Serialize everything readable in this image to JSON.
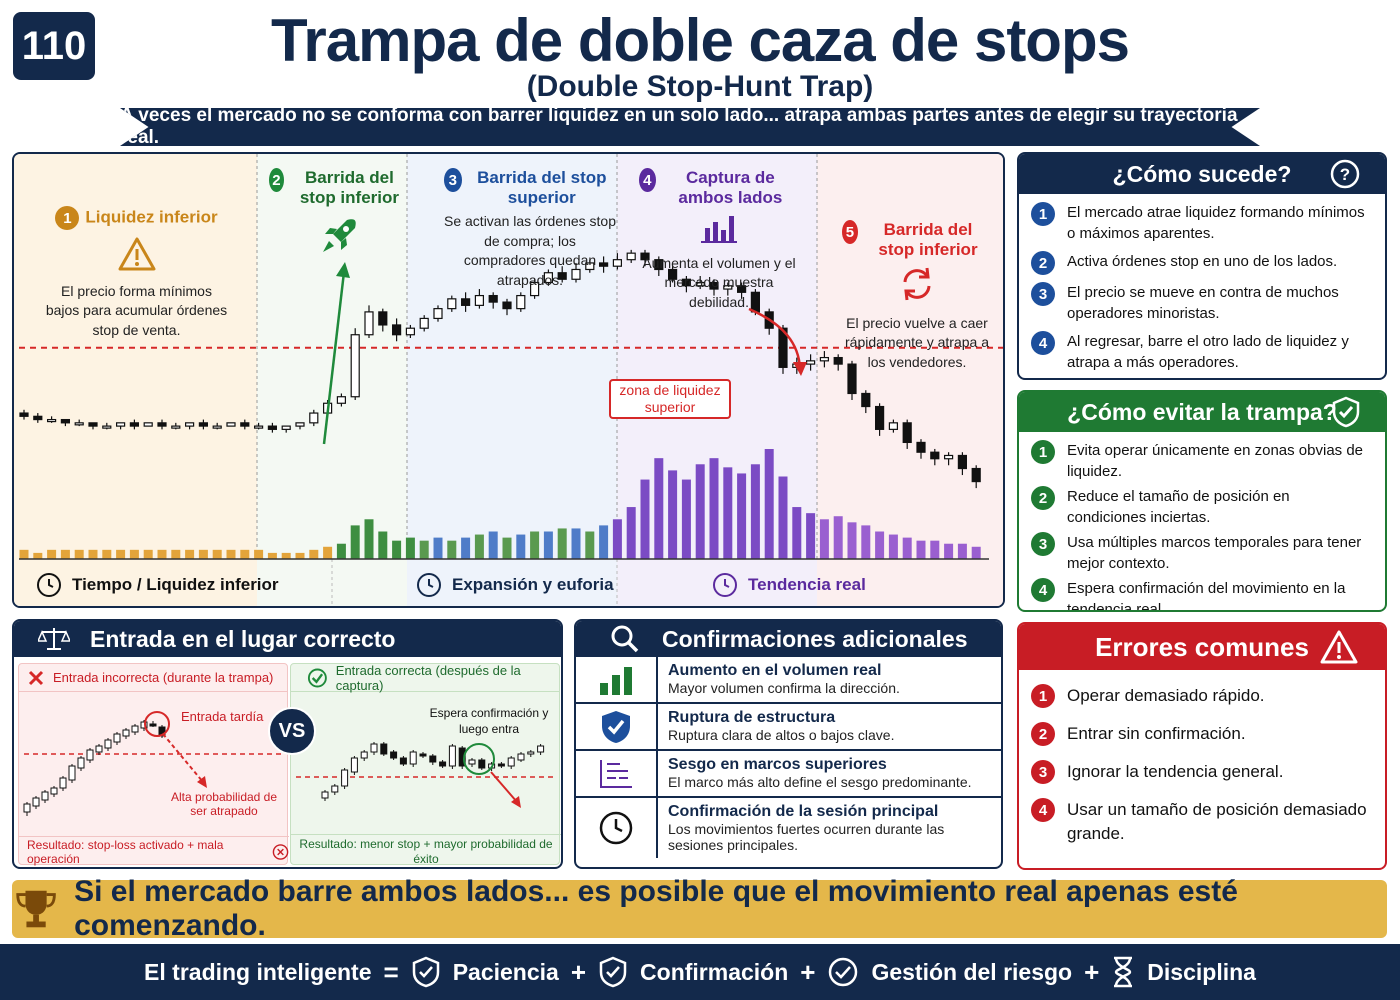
{
  "header": {
    "number": "110",
    "title": "Trampa de doble caza de stops",
    "subtitle": "(Double Stop-Hunt Trap)",
    "ribbon": "A veces el mercado no se conforma con barrer liquidez en un solo lado... atrapa ambas partes antes de elegir su trayectoria real."
  },
  "phases": [
    {
      "num": "1",
      "title": "Liquidez inferior",
      "text": "El precio forma mínimos bajos para acumular órdenes stop de venta.",
      "color": "#c9861a"
    },
    {
      "num": "2",
      "title": "Barrida del stop inferior",
      "text": "",
      "color": "#1f8a3b"
    },
    {
      "num": "3",
      "title": "Barrida del stop superior",
      "text": "Se activan las órdenes stop de compra; los compradores quedan atrapados.",
      "color": "#1d4f9c"
    },
    {
      "num": "4",
      "title": "Captura de ambos lados",
      "text": "Aumenta el volumen y el mercado muestra debilidad.",
      "color": "#5b2a9e"
    },
    {
      "num": "5",
      "title": "Barrida del stop inferior",
      "text": "El precio vuelve a caer rápidamente y atrapa a los vendedores.",
      "color": "#d62828"
    }
  ],
  "zone_label": "zona de liquidez superior",
  "time_labels": [
    "Tiempo / Liquidez inferior",
    "Expansión y euforia",
    "Tendencia real"
  ],
  "chart_data": {
    "type": "candlestick",
    "candles": [
      [
        104,
        103,
        105,
        102
      ],
      [
        103,
        102,
        104,
        101
      ],
      [
        102,
        102,
        103,
        101
      ],
      [
        102,
        101,
        102,
        100
      ],
      [
        101,
        101,
        102,
        100
      ],
      [
        101,
        100,
        101,
        99
      ],
      [
        100,
        100,
        101,
        99
      ],
      [
        100,
        101,
        101,
        99
      ],
      [
        101,
        100,
        102,
        99
      ],
      [
        100,
        101,
        101,
        100
      ],
      [
        101,
        100,
        102,
        99
      ],
      [
        100,
        100,
        101,
        99
      ],
      [
        100,
        101,
        101,
        99
      ],
      [
        101,
        100,
        102,
        99
      ],
      [
        100,
        100,
        101,
        99
      ],
      [
        100,
        101,
        101,
        100
      ],
      [
        101,
        100,
        102,
        99
      ],
      [
        100,
        100,
        101,
        99
      ],
      [
        100,
        99,
        101,
        98
      ],
      [
        99,
        100,
        100,
        98
      ],
      [
        100,
        101,
        101,
        99
      ],
      [
        101,
        104,
        105,
        100
      ],
      [
        104,
        107,
        108,
        103
      ],
      [
        107,
        109,
        110,
        106
      ],
      [
        109,
        128,
        130,
        108
      ],
      [
        128,
        135,
        137,
        127
      ],
      [
        135,
        131,
        136,
        129
      ],
      [
        131,
        128,
        133,
        126
      ],
      [
        128,
        130,
        131,
        127
      ],
      [
        130,
        133,
        134,
        129
      ],
      [
        133,
        136,
        137,
        132
      ],
      [
        136,
        139,
        140,
        135
      ],
      [
        139,
        137,
        141,
        135
      ],
      [
        137,
        140,
        142,
        136
      ],
      [
        140,
        138,
        141,
        136
      ],
      [
        138,
        136,
        139,
        134
      ],
      [
        136,
        140,
        141,
        135
      ],
      [
        140,
        144,
        145,
        139
      ],
      [
        144,
        147,
        148,
        143
      ],
      [
        147,
        145,
        149,
        144
      ],
      [
        145,
        148,
        150,
        144
      ],
      [
        148,
        150,
        151,
        147
      ],
      [
        150,
        149,
        152,
        147
      ],
      [
        149,
        151,
        153,
        148
      ],
      [
        151,
        153,
        154,
        150
      ],
      [
        153,
        151,
        154,
        149
      ],
      [
        151,
        148,
        152,
        146
      ],
      [
        148,
        145,
        149,
        144
      ],
      [
        145,
        143,
        146,
        141
      ],
      [
        143,
        144,
        146,
        142
      ],
      [
        144,
        142,
        145,
        140
      ],
      [
        142,
        143,
        144,
        140
      ],
      [
        143,
        141,
        144,
        139
      ],
      [
        141,
        135,
        142,
        134
      ],
      [
        135,
        130,
        136,
        128
      ],
      [
        130,
        118,
        131,
        116
      ],
      [
        118,
        119,
        121,
        116
      ],
      [
        119,
        120,
        122,
        117
      ],
      [
        120,
        121,
        123,
        118
      ],
      [
        121,
        119,
        122,
        117
      ],
      [
        119,
        110,
        120,
        108
      ],
      [
        110,
        106,
        111,
        104
      ],
      [
        106,
        99,
        107,
        97
      ],
      [
        99,
        101,
        102,
        98
      ],
      [
        101,
        95,
        102,
        93
      ],
      [
        95,
        92,
        96,
        90
      ],
      [
        92,
        90,
        93,
        88
      ],
      [
        90,
        91,
        92,
        88
      ],
      [
        91,
        87,
        92,
        85
      ],
      [
        87,
        83,
        88,
        81
      ]
    ],
    "volume": [
      3,
      2,
      3,
      3,
      3,
      3,
      3,
      3,
      3,
      3,
      3,
      3,
      3,
      3,
      3,
      3,
      3,
      3,
      2,
      2,
      2,
      3,
      4,
      5,
      11,
      13,
      9,
      6,
      7,
      6,
      7,
      6,
      7,
      8,
      9,
      7,
      8,
      9,
      9,
      10,
      10,
      9,
      11,
      13,
      17,
      26,
      33,
      29,
      26,
      31,
      33,
      30,
      28,
      31,
      36,
      27,
      17,
      15,
      13,
      14,
      12,
      11,
      9,
      8,
      7,
      6,
      6,
      5,
      5,
      4
    ],
    "zone_price": 124,
    "ylim": [
      70,
      165
    ]
  },
  "side_how": {
    "title": "¿Cómo sucede?",
    "items": [
      "El mercado atrae liquidez formando mínimos o máximos aparentes.",
      "Activa órdenes stop en uno de los lados.",
      "El precio se mueve en contra de muchos operadores minoristas.",
      "Al regresar, barre el otro lado de liquidez y atrapa a más operadores."
    ],
    "color": "#13294b"
  },
  "side_avoid": {
    "title": "¿Cómo evitar la trampa?",
    "items": [
      "Evita operar únicamente en zonas obvias de liquidez.",
      "Reduce el tamaño de posición en condiciones inciertas.",
      "Usa múltiples marcos temporales para tener mejor contexto.",
      "Espera confirmación del movimiento en la tendencia real."
    ],
    "color": "#1f7a33"
  },
  "side_errors": {
    "title": "Errores comunes",
    "items": [
      "Operar demasiado rápido.",
      "Entrar sin confirmación.",
      "Ignorar la tendencia general.",
      "Usar un tamaño de posición demasiado grande."
    ],
    "color": "#c81d25"
  },
  "entry": {
    "title": "Entrada en el lugar correcto",
    "wrong_title": "Entrada incorrecta (durante la trampa)",
    "wrong_tag": "Entrada tardía",
    "wrong_note": "Alta probabilidad de ser atrapado",
    "wrong_result": "Resultado: stop-loss activado + mala operación",
    "right_title": "Entrada correcta (después de la captura)",
    "right_tag": "Espera confirmación y luego entra",
    "right_result": "Resultado: menor stop + mayor probabilidad de éxito",
    "vs": "VS"
  },
  "confirm": {
    "title": "Confirmaciones adicionales",
    "items": [
      {
        "t": "Aumento en el volumen real",
        "d": "Mayor volumen confirma la dirección.",
        "icon": "bar-chart-icon"
      },
      {
        "t": "Ruptura de estructura",
        "d": "Ruptura clara de altos o bajos clave.",
        "icon": "shield-check-icon"
      },
      {
        "t": "Sesgo en marcos superiores",
        "d": "El marco más alto define el sesgo predominante.",
        "icon": "timeframe-icon"
      },
      {
        "t": "Confirmación de la sesión principal",
        "d": "Los movimientos fuertes ocurren durante las sesiones principales.",
        "icon": "clock-icon"
      }
    ]
  },
  "banner": "Si el mercado barre ambos lados... es posible que el movimiento real apenas esté comenzando.",
  "footer": {
    "lead": "El trading inteligente",
    "eq": "=",
    "plus": "+",
    "items": [
      "Paciencia",
      "Confirmación",
      "Gestión del riesgo",
      "Disciplina"
    ]
  }
}
